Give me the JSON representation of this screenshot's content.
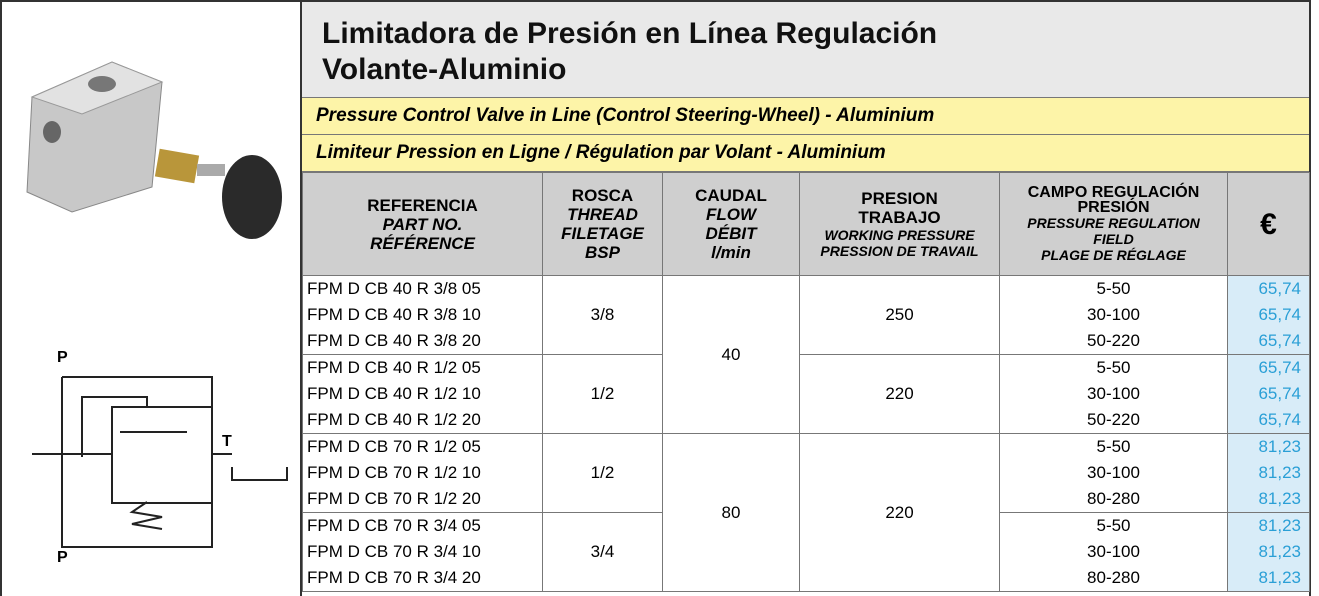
{
  "title": {
    "line1": "Limitadora de Presión en Línea Regulación",
    "line2": "Volante-Aluminio"
  },
  "subtitle_en": "Pressure Control Valve in Line (Control Steering-Wheel) - Aluminium",
  "subtitle_fr": "Limiteur Pression en Ligne / Régulation par Volant - Aluminium",
  "symbol": {
    "port_p_top": "P",
    "port_t": "T",
    "port_p_bottom": "P"
  },
  "table": {
    "header": [
      {
        "bold": [
          "REFERENCIA"
        ],
        "italic": [
          "PART NO.",
          "RÉFÉRENCE"
        ]
      },
      {
        "bold": [
          "ROSCA"
        ],
        "italic": [
          "THREAD",
          "FILETAGE",
          "BSP"
        ]
      },
      {
        "bold": [
          "CAUDAL"
        ],
        "italic": [
          "FLOW",
          "DÉBIT",
          "l/min"
        ]
      },
      {
        "bold": [
          "PRESION",
          "TRABAJO"
        ],
        "italic": [
          "WORKING PRESSURE",
          "PRESSION DE TRAVAIL"
        ]
      },
      {
        "bold": [
          "CAMPO REGULACIÓN",
          "PRESIÓN"
        ],
        "italic": [
          "PRESSURE REGULATION",
          "FIELD",
          "PLAGE DE RÉGLAGE"
        ]
      },
      {
        "bold": [
          "€"
        ],
        "italic": []
      }
    ],
    "blocks": [
      {
        "caudal": "40",
        "subgroups": [
          {
            "rosca": "3/8",
            "presion": "250",
            "items": [
              {
                "ref": "FPM D CB 40 R 3/8 05",
                "range": "5-50",
                "price": "65,74"
              },
              {
                "ref": "FPM D CB 40 R 3/8 10",
                "range": "30-100",
                "price": "65,74"
              },
              {
                "ref": "FPM D CB 40 R 3/8 20",
                "range": "50-220",
                "price": "65,74"
              }
            ]
          },
          {
            "rosca": "1/2",
            "presion": "220",
            "items": [
              {
                "ref": "FPM D CB 40 R 1/2 05",
                "range": "5-50",
                "price": "65,74"
              },
              {
                "ref": "FPM D CB 40 R 1/2 10",
                "range": "30-100",
                "price": "65,74"
              },
              {
                "ref": "FPM D CB 40 R 1/2 20",
                "range": "50-220",
                "price": "65,74"
              }
            ]
          }
        ]
      },
      {
        "caudal": "80",
        "presion": "220",
        "subgroups": [
          {
            "rosca": "1/2",
            "items": [
              {
                "ref": "FPM D CB 70 R 1/2 05",
                "range": "5-50",
                "price": "81,23"
              },
              {
                "ref": "FPM D CB 70 R 1/2 10",
                "range": "30-100",
                "price": "81,23"
              },
              {
                "ref": "FPM D CB 70 R 1/2 20",
                "range": "80-280",
                "price": "81,23"
              }
            ]
          },
          {
            "rosca": "3/4",
            "items": [
              {
                "ref": "FPM D CB 70 R 3/4 05",
                "range": "5-50",
                "price": "81,23"
              },
              {
                "ref": "FPM D CB 70 R 3/4 10",
                "range": "30-100",
                "price": "81,23"
              },
              {
                "ref": "FPM D CB 70 R 3/4 20",
                "range": "80-280",
                "price": "81,23"
              }
            ]
          }
        ]
      }
    ]
  }
}
